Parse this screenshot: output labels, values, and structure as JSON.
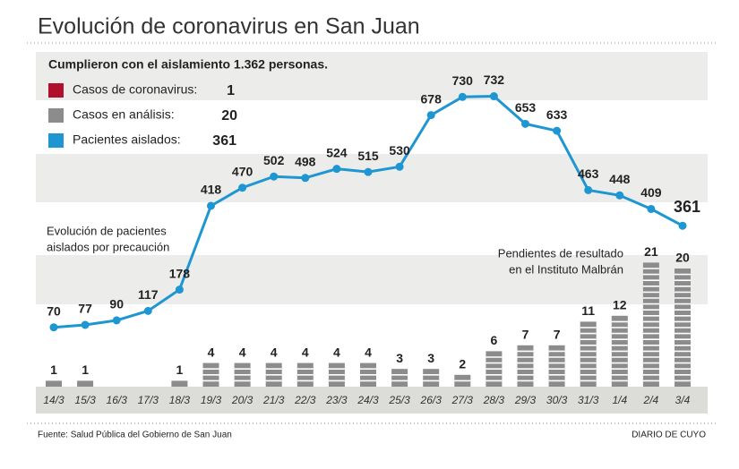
{
  "title": "Evolución de coronavirus en San Juan",
  "summary": "Cumplieron con el aislamiento 1.362 personas.",
  "source": "Fuente: Salud Pública del Gobierno de San Juan",
  "brand": "DIARIO DE CUYO",
  "chart_data": {
    "type": "line_bar",
    "legend": [
      {
        "name": "Casos de coronavirus:",
        "color": "#b0102a",
        "value": 1
      },
      {
        "name": "Casos en análisis:",
        "color": "#8c8c8c",
        "value": 20
      },
      {
        "name": "Pacientes aislados:",
        "color": "#1e96d2",
        "value": 361
      }
    ],
    "annotations": [
      [
        "Evolución de pacientes",
        "aislados por precaución"
      ],
      [
        "Pendientes de resultado",
        "en el Instituto Malbrán"
      ]
    ],
    "categories": [
      "14/3",
      "15/3",
      "16/3",
      "17/3",
      "18/3",
      "19/3",
      "20/3",
      "21/3",
      "22/3",
      "23/3",
      "24/3",
      "25/3",
      "26/3",
      "27/3",
      "28/3",
      "29/3",
      "30/3",
      "31/3",
      "1/4",
      "2/4",
      "3/4"
    ],
    "series": [
      {
        "type": "line",
        "color": "#1e96d2",
        "values": [
          70,
          77,
          90,
          117,
          178,
          418,
          470,
          502,
          498,
          524,
          515,
          530,
          678,
          730,
          732,
          653,
          633,
          463,
          448,
          409,
          361
        ]
      },
      {
        "type": "bar",
        "color": "#8c8c8c",
        "values": [
          1,
          1,
          null,
          null,
          1,
          4,
          4,
          4,
          4,
          4,
          4,
          3,
          3,
          2,
          6,
          7,
          7,
          11,
          12,
          21,
          20
        ]
      }
    ]
  }
}
